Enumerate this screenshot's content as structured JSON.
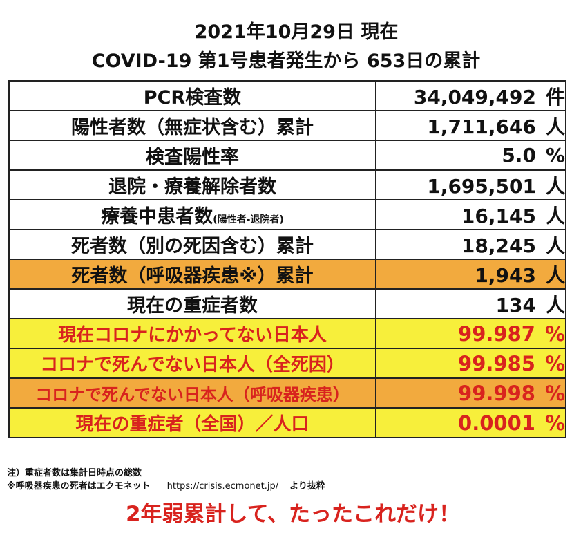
{
  "title_line1": "2021年10月29日 現在",
  "title_line2": "COVID-19 第1号患者発生から 653日の累計",
  "rows": [
    {
      "label": "PCR検査数",
      "note": "",
      "value": "34,049,492",
      "unit": "件"
    },
    {
      "label": "陽性者数（無症状含む）累計",
      "note": "",
      "value": "1,711,646",
      "unit": "人"
    },
    {
      "label": "検査陽性率",
      "note": "",
      "value": "5.0",
      "unit": "%"
    },
    {
      "label": "退院・療養解除者数",
      "note": "",
      "value": "1,695,501",
      "unit": "人"
    },
    {
      "label": "療養中患者数",
      "note": "(陽性者-退院者)",
      "value": "16,145",
      "unit": "人"
    },
    {
      "label": "死者数（別の死因含む）累計",
      "note": "",
      "value": "18,245",
      "unit": "人"
    },
    {
      "label": "死者数（呼吸器疾患※）累計",
      "note": "",
      "value": "1,943",
      "unit": "人"
    },
    {
      "label": "現在の重症者数",
      "note": "",
      "value": "134",
      "unit": "人"
    },
    {
      "label": "現在コロナにかかってない日本人",
      "note": "",
      "value": "99.987",
      "unit": "%"
    },
    {
      "label": "コロナで死んでない日本人（全死因）",
      "note": "",
      "value": "99.985",
      "unit": "%"
    },
    {
      "label": "コロナで死んでない日本人（呼吸器疾患）",
      "note": "",
      "value": "99.998",
      "unit": "%"
    },
    {
      "label": "現在の重症者（全国）／人口",
      "note": "",
      "value": "0.0001",
      "unit": "%"
    }
  ],
  "notes": {
    "line1": "注）重症者数は集計日時点の総数",
    "line2": "※呼吸器疾患の死者はエクモネット",
    "url": "https://crisis.ecmonet.jp/",
    "source": "より抜粋"
  },
  "slogan": "2年弱累計して、たったこれだけ！",
  "colors": {
    "orange": "#f2aa3e",
    "yellow": "#f7ef3b",
    "red_text": "#d8231e"
  }
}
